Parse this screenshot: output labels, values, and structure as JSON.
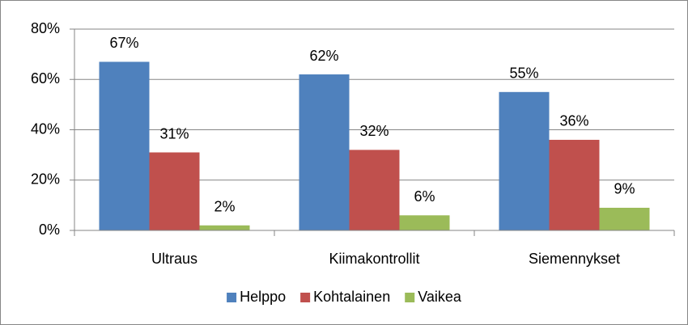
{
  "chart_data": {
    "type": "bar",
    "categories": [
      "Ultraus",
      "Kiimakontrollit",
      "Siemennykset"
    ],
    "series": [
      {
        "name": "Helppo",
        "color": "#4f81bd",
        "values": [
          67,
          62,
          55
        ],
        "value_labels": [
          "67%",
          "62%",
          "55%"
        ]
      },
      {
        "name": "Kohtalainen",
        "color": "#c0504d",
        "values": [
          31,
          32,
          36
        ],
        "value_labels": [
          "31%",
          "32%",
          "36%"
        ]
      },
      {
        "name": "Vaikea",
        "color": "#9bbb59",
        "values": [
          2,
          6,
          9
        ],
        "value_labels": [
          "2%",
          "6%",
          "9%"
        ]
      }
    ],
    "ylim": [
      0,
      80
    ],
    "yticks": [
      {
        "value": 0,
        "label": "0%"
      },
      {
        "value": 20,
        "label": "20%"
      },
      {
        "value": 40,
        "label": "40%"
      },
      {
        "value": 60,
        "label": "60%"
      },
      {
        "value": 80,
        "label": "80%"
      }
    ],
    "grid": true,
    "legend": "bottom"
  }
}
